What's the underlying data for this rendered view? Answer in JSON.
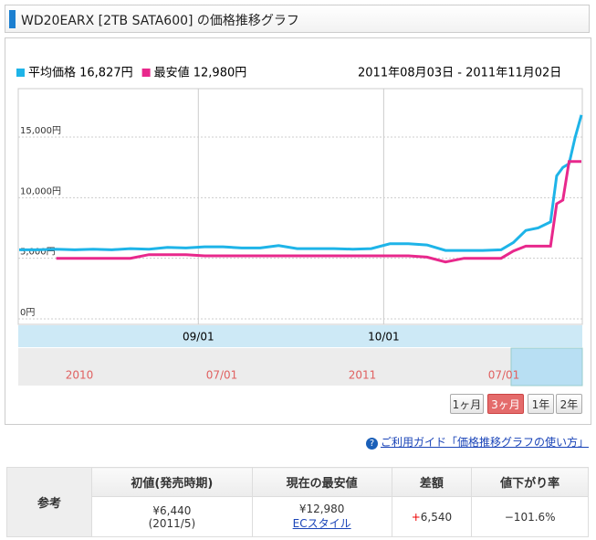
{
  "header": {
    "title": "WD20EARX [2TB SATA600] の価格推移グラフ"
  },
  "chart_data": {
    "type": "line",
    "subtitle": "2011年08月03日 - 2011年11月02日",
    "x": [
      "2011-08-03",
      "2011-08-06",
      "2011-08-09",
      "2011-08-12",
      "2011-08-15",
      "2011-08-18",
      "2011-08-21",
      "2011-08-24",
      "2011-08-27",
      "2011-08-30",
      "2011-09-02",
      "2011-09-05",
      "2011-09-08",
      "2011-09-11",
      "2011-09-14",
      "2011-09-17",
      "2011-09-20",
      "2011-09-23",
      "2011-09-26",
      "2011-09-29",
      "2011-10-02",
      "2011-10-05",
      "2011-10-08",
      "2011-10-11",
      "2011-10-14",
      "2011-10-17",
      "2011-10-20",
      "2011-10-22",
      "2011-10-24",
      "2011-10-26",
      "2011-10-28",
      "2011-10-29",
      "2011-10-30",
      "2011-10-31",
      "2011-11-01",
      "2011-11-02"
    ],
    "series": [
      {
        "name": "平均価格 16,827円",
        "color": "#1eb4e8",
        "values": [
          5700,
          5700,
          5750,
          5700,
          5750,
          5700,
          5800,
          5750,
          5900,
          5850,
          5950,
          5950,
          5850,
          5850,
          6050,
          5800,
          5800,
          5800,
          5750,
          5800,
          6200,
          6200,
          6100,
          5650,
          5650,
          5650,
          5700,
          6300,
          7300,
          7500,
          8000,
          11800,
          12500,
          12800,
          15000,
          16827
        ]
      },
      {
        "name": "最安値 12,980円",
        "color": "#e8288c",
        "values": [
          null,
          null,
          5000,
          5000,
          5000,
          5000,
          5000,
          5300,
          5300,
          5300,
          5200,
          5200,
          5200,
          5200,
          5200,
          5200,
          5200,
          5200,
          5200,
          5200,
          5200,
          5200,
          5100,
          4700,
          5000,
          5000,
          5000,
          5600,
          6000,
          6000,
          6000,
          9500,
          9800,
          12980,
          12980,
          12980
        ]
      }
    ],
    "xlim": [
      "2011-08-03",
      "2011-11-02"
    ],
    "xticks": [
      {
        "value": "2011-09-01",
        "label": "09/01"
      },
      {
        "value": "2011-10-01",
        "label": "10/01"
      }
    ],
    "ylim": [
      0,
      19000
    ],
    "yticks": [
      {
        "value": 0,
        "label": "0円"
      },
      {
        "value": 5000,
        "label": "5,000円"
      },
      {
        "value": 10000,
        "label": "10,000円"
      },
      {
        "value": 15000,
        "label": "15,000円"
      }
    ],
    "grid": true
  },
  "navigator": {
    "labels": [
      "2010",
      "07/01",
      "2011",
      "07/01"
    ]
  },
  "buttons": [
    "1ヶ月",
    "3ヶ月",
    "1年",
    "2年"
  ],
  "active_button": 1,
  "guide_link": "ご利用ガイド「価格推移グラフの使い方」",
  "table": {
    "row_header": "参考",
    "headers": [
      "初値(発売時期)",
      "現在の最安値",
      "差額",
      "値下がり率"
    ],
    "cells": [
      [
        "¥6,440",
        "(2011/5)"
      ],
      [
        "¥12,980",
        "ECスタイル"
      ],
      [
        "+6,540"
      ],
      [
        "−101.6%"
      ]
    ]
  }
}
